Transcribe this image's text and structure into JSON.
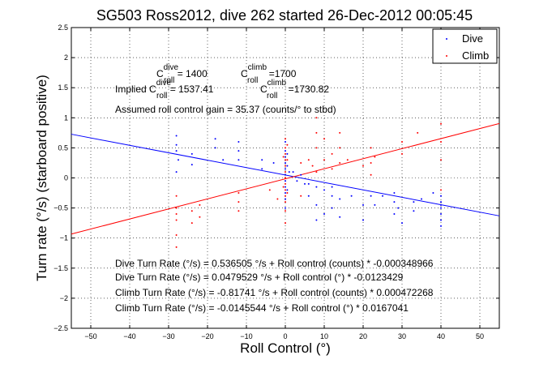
{
  "chart_data": {
    "type": "scatter",
    "title": "SG503 Ross2012, dive 262 started 26-Dec-2012 00:05:45",
    "xlabel": "Roll Control (°)",
    "ylabel": "Turn rate (°/s) (starboard positive)",
    "xlim": [
      -55,
      55
    ],
    "ylim": [
      -2.5,
      2.5
    ],
    "xticks": [
      -50,
      -40,
      -30,
      -20,
      -10,
      0,
      10,
      20,
      30,
      40,
      50
    ],
    "yticks": [
      -2.5,
      -2,
      -1.5,
      -1,
      -0.5,
      0,
      0.5,
      1,
      1.5,
      2,
      2.5
    ],
    "grid": true,
    "legend_position": "top-right",
    "series": [
      {
        "name": "Dive",
        "color": "#0000ff",
        "marker": "dot",
        "points": [
          [
            -28,
            0.7
          ],
          [
            -28,
            0.55
          ],
          [
            -28,
            0.45
          ],
          [
            -27.5,
            0.3
          ],
          [
            -28,
            0.1
          ],
          [
            -24,
            0.4
          ],
          [
            -24,
            0.22
          ],
          [
            -18,
            0.65
          ],
          [
            -18,
            0.5
          ],
          [
            -16,
            0.3
          ],
          [
            -12,
            0.6
          ],
          [
            -12,
            0.45
          ],
          [
            -12,
            0.3
          ],
          [
            -6,
            0.3
          ],
          [
            -6,
            0.15
          ],
          [
            -3,
            0.25
          ],
          [
            0,
            0.6
          ],
          [
            0,
            0.45
          ],
          [
            0,
            0.35
          ],
          [
            0,
            0.25
          ],
          [
            0,
            0.15
          ],
          [
            0,
            0.05
          ],
          [
            0,
            -0.05
          ],
          [
            0,
            -0.15
          ],
          [
            0,
            -0.25
          ],
          [
            0,
            -0.35
          ],
          [
            0,
            -0.5
          ],
          [
            0.5,
            0.4
          ],
          [
            0.5,
            0.2
          ],
          [
            0.5,
            -0.2
          ],
          [
            1,
            0.1
          ],
          [
            2,
            0.1
          ],
          [
            3,
            -0.05
          ],
          [
            4,
            0.05
          ],
          [
            5,
            -0.1
          ],
          [
            6,
            -0.1
          ],
          [
            6,
            -0.3
          ],
          [
            8,
            -0.15
          ],
          [
            8,
            -0.45
          ],
          [
            8,
            -0.7
          ],
          [
            10,
            -0.2
          ],
          [
            10,
            -0.6
          ],
          [
            12,
            -0.15
          ],
          [
            12,
            -0.3
          ],
          [
            12,
            -0.5
          ],
          [
            14,
            -0.35
          ],
          [
            14,
            -0.65
          ],
          [
            17,
            -0.3
          ],
          [
            20,
            -0.45
          ],
          [
            20,
            -0.7
          ],
          [
            22,
            -0.3
          ],
          [
            23,
            -0.45
          ],
          [
            25,
            -0.3
          ],
          [
            28,
            -0.25
          ],
          [
            28,
            -0.4
          ],
          [
            28,
            -0.6
          ],
          [
            29,
            -0.5
          ],
          [
            30,
            -0.75
          ],
          [
            33,
            -0.4
          ],
          [
            33,
            -0.55
          ],
          [
            35,
            -0.35
          ],
          [
            38,
            -0.25
          ],
          [
            40,
            -0.3
          ],
          [
            40,
            -0.4
          ],
          [
            40,
            -0.5
          ],
          [
            40,
            -0.6
          ],
          [
            40,
            -0.7
          ],
          [
            40,
            -0.8
          ],
          [
            40,
            -0.45
          ]
        ]
      },
      {
        "name": "Climb",
        "color": "#ff0000",
        "marker": "dot",
        "points": [
          [
            -28,
            -0.3
          ],
          [
            -28,
            -0.5
          ],
          [
            -28,
            -0.6
          ],
          [
            -28,
            -0.7
          ],
          [
            -28,
            -0.95
          ],
          [
            -28,
            -1.15
          ],
          [
            -24,
            -0.55
          ],
          [
            -24,
            -0.75
          ],
          [
            -22,
            -0.45
          ],
          [
            -22,
            -0.65
          ],
          [
            -12,
            -0.25
          ],
          [
            -12,
            -0.4
          ],
          [
            -12,
            -0.55
          ],
          [
            -4,
            -0.2
          ],
          [
            -2,
            -0.35
          ],
          [
            0,
            0.65
          ],
          [
            0,
            0.5
          ],
          [
            0,
            0.4
          ],
          [
            0,
            0.3
          ],
          [
            0,
            0.2
          ],
          [
            0,
            0.1
          ],
          [
            0,
            0
          ],
          [
            0,
            -0.1
          ],
          [
            0,
            -0.2
          ],
          [
            0,
            -0.3
          ],
          [
            0,
            -0.4
          ],
          [
            0,
            -0.55
          ],
          [
            0,
            -0.75
          ],
          [
            0.5,
            0.55
          ],
          [
            0.5,
            0.3
          ],
          [
            0.5,
            -0.25
          ],
          [
            -0.5,
            0.35
          ],
          [
            -0.5,
            -0.15
          ],
          [
            4,
            0.25
          ],
          [
            4,
            -0.3
          ],
          [
            6,
            0.3
          ],
          [
            7,
            0.2
          ],
          [
            8,
            0.1
          ],
          [
            8,
            0.5
          ],
          [
            8,
            0.75
          ],
          [
            8,
            1.0
          ],
          [
            10,
            0.65
          ],
          [
            10,
            0.3
          ],
          [
            12,
            0.4
          ],
          [
            12,
            0.15
          ],
          [
            14,
            0.75
          ],
          [
            14,
            0.5
          ],
          [
            14,
            0.25
          ],
          [
            16,
            0.3
          ],
          [
            20,
            0.2
          ],
          [
            22,
            0.5
          ],
          [
            22,
            0.25
          ],
          [
            22,
            0.05
          ],
          [
            23,
            0.35
          ],
          [
            30,
            0.4
          ],
          [
            30,
            0.6
          ],
          [
            34,
            0.75
          ],
          [
            40,
            0.9
          ],
          [
            40,
            0.6
          ],
          [
            40,
            0.3
          ],
          [
            40,
            -0.2
          ]
        ]
      }
    ],
    "fit_lines": [
      {
        "name": "Dive fit",
        "color": "#0000ff",
        "intercept": 0.0479529,
        "slope": -0.0123429
      },
      {
        "name": "Climb fit",
        "color": "#ff0000",
        "intercept": -0.0145544,
        "slope": 0.0167041
      }
    ],
    "annotations": {
      "c_dive_label": "C",
      "c_dive_sup": "dive",
      "c_dive_sub": "roll",
      "c_dive_val": " = 1400",
      "c_climb_label": "C",
      "c_climb_sup": "climb",
      "c_climb_sub": "roll",
      "c_climb_val": " =1700",
      "implied_prefix": "Implied C",
      "implied_dive_sup": "dive",
      "implied_dive_sub": "roll",
      "implied_dive_val": " = 1537.41",
      "implied_climb_label": "C",
      "implied_climb_sup": "climb",
      "implied_climb_sub": "roll",
      "implied_climb_val": " =1730.82",
      "gain": "Assumed roll control gain = 35.37 (counts/° to stbd)",
      "eq1": "Dive Turn Rate (°/s) = 0.536505 °/s + Roll control (counts) * -0.000348966",
      "eq2": "Dive Turn Rate (°/s) = 0.0479529 °/s + Roll control (°) * -0.0123429",
      "eq3": "Climb Turn Rate (°/s) = -0.81741 °/s + Roll control (counts) * 0.000472268",
      "eq4": "Climb Turn Rate (°/s) = -0.0145544 °/s + Roll control (°) * 0.0167041"
    }
  }
}
